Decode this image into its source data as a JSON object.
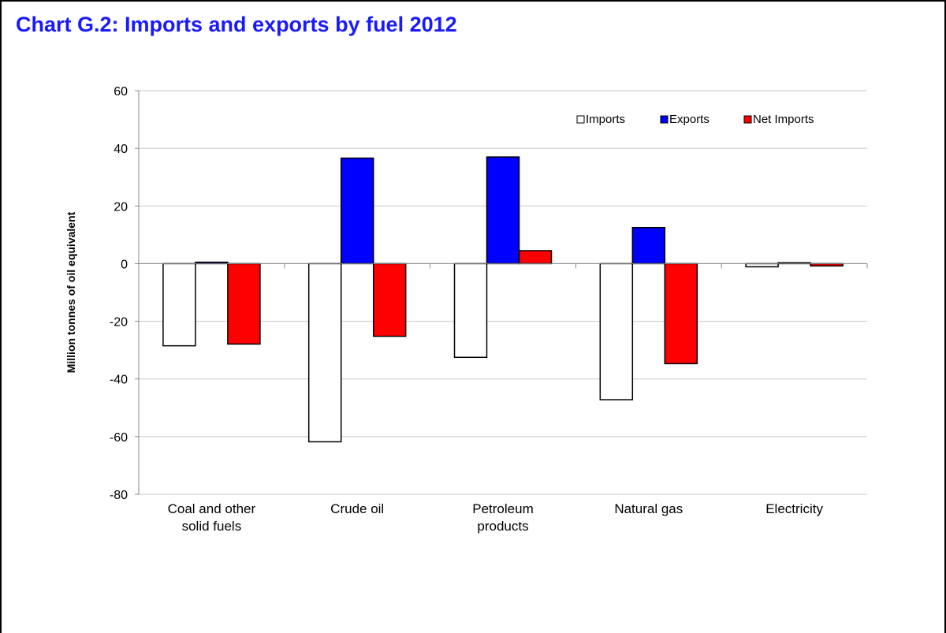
{
  "chart_data": {
    "type": "bar",
    "title": "Chart G.2:  Imports and exports by fuel 2012",
    "ylabel": "Million tonnes of oil equivalent",
    "xlabel": "",
    "ylim": [
      -80,
      60
    ],
    "yticks": [
      60,
      40,
      20,
      0,
      -20,
      -40,
      -60,
      -80
    ],
    "grid": true,
    "legend_position": "top-right",
    "categories": [
      [
        "Coal and other",
        "solid fuels"
      ],
      [
        "Crude oil"
      ],
      [
        "Petroleum",
        "products"
      ],
      [
        "Natural gas"
      ],
      [
        "Electricity"
      ]
    ],
    "series": [
      {
        "name": "Imports",
        "color": "#ffffff",
        "values": [
          -28.5,
          -61.8,
          -32.5,
          -47.2,
          -1.1
        ]
      },
      {
        "name": "Exports",
        "color": "#0000ff",
        "values": [
          0.5,
          36.6,
          37.0,
          12.5,
          0.3
        ]
      },
      {
        "name": "Net Imports",
        "color": "#ff0000",
        "values": [
          -27.9,
          -25.2,
          4.5,
          -34.7,
          -0.8
        ]
      }
    ]
  }
}
